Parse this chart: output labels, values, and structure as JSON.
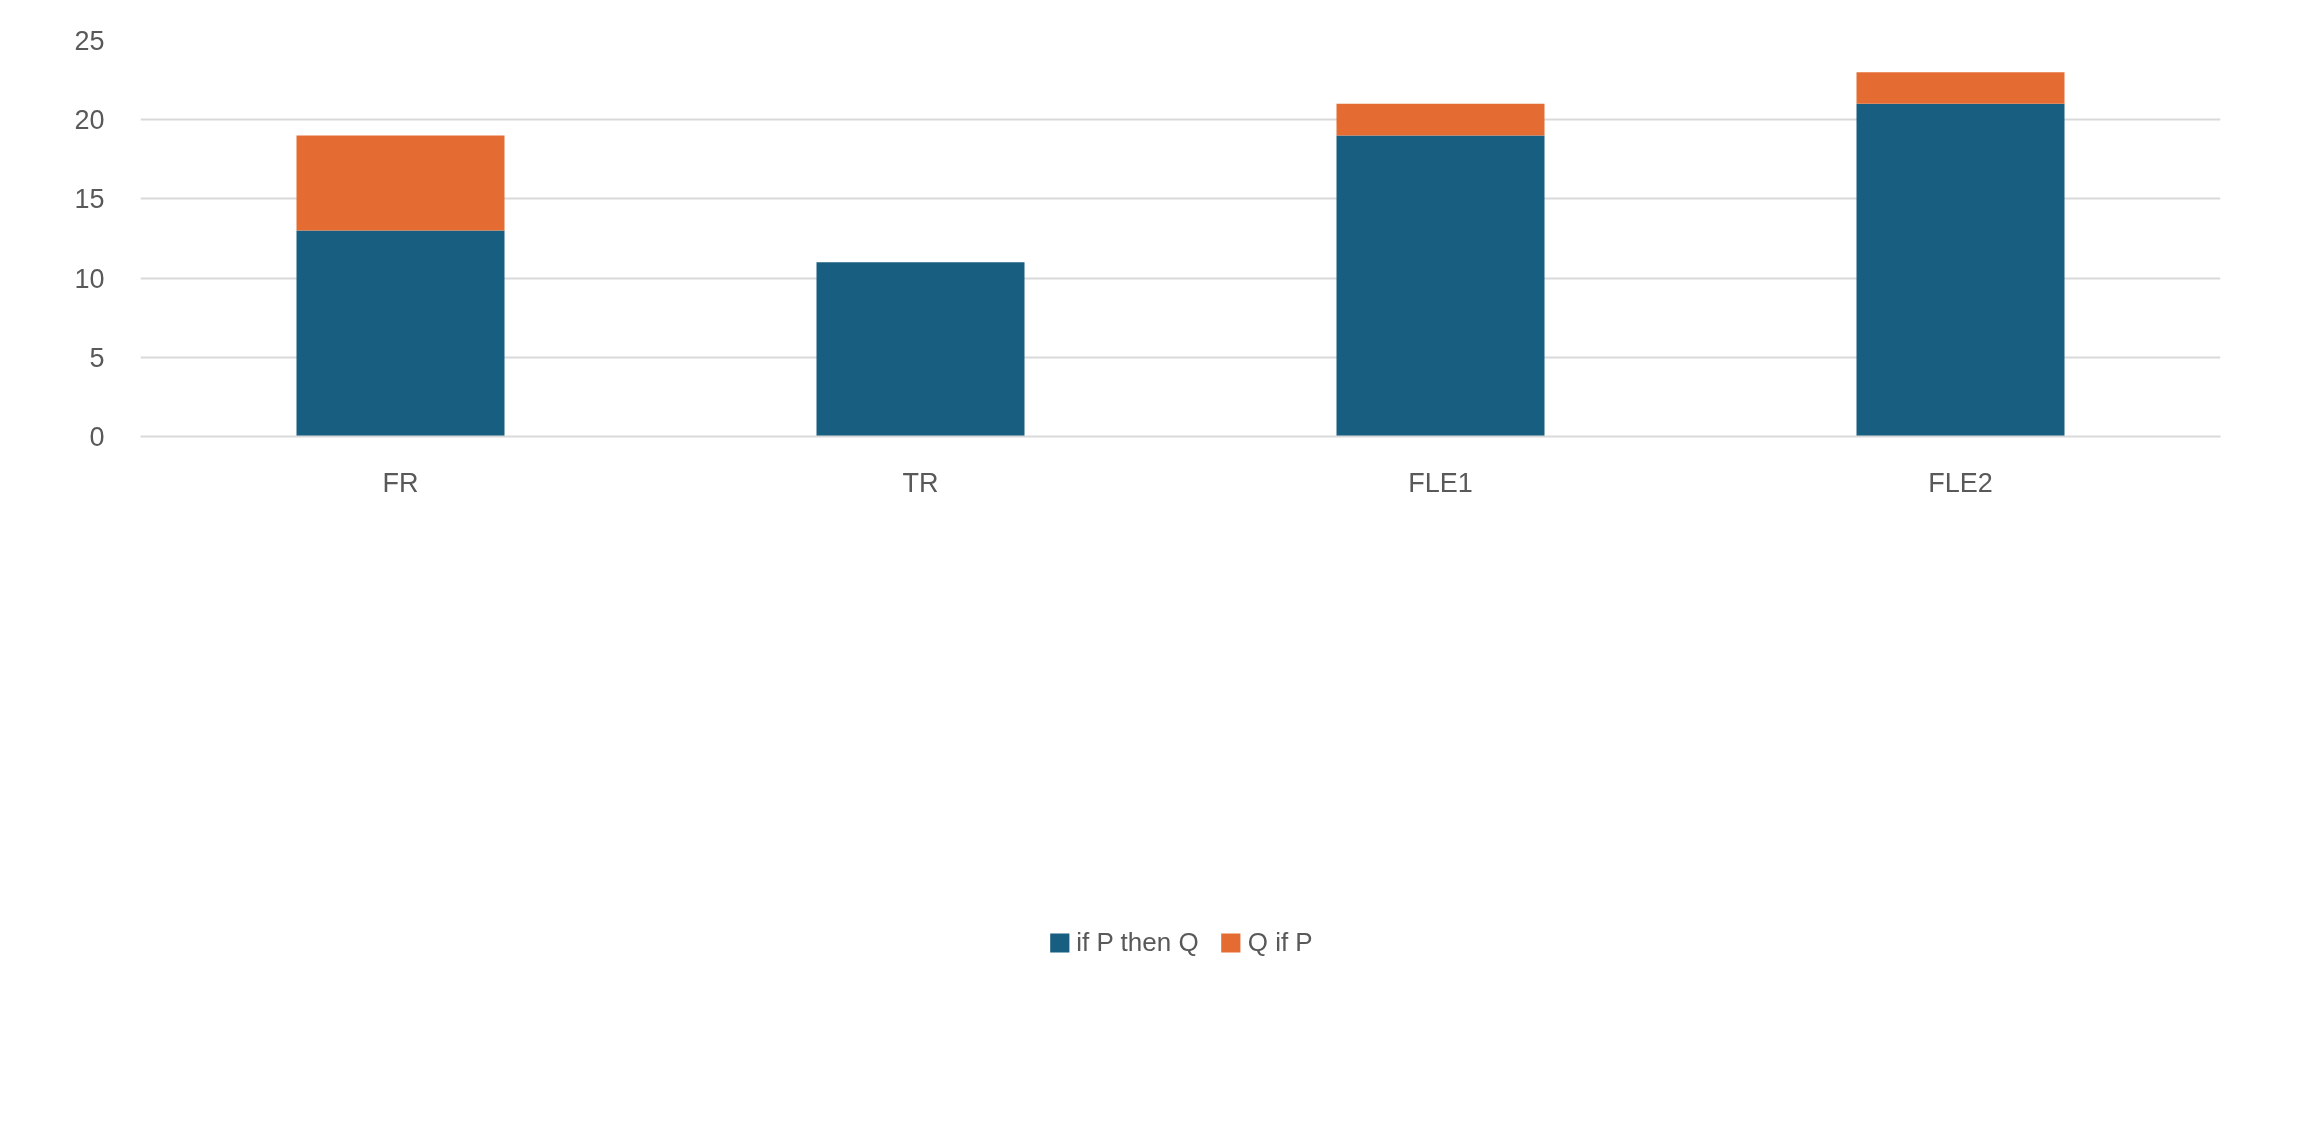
{
  "chart_data": {
    "type": "bar",
    "stacked": true,
    "categories": [
      "FR",
      "TR",
      "FLE1",
      "FLE2"
    ],
    "series": [
      {
        "name": "if P then Q",
        "color": "#175e80",
        "values": [
          13,
          11,
          19,
          21
        ]
      },
      {
        "name": "Q if P",
        "color": "#e46c32",
        "values": [
          6,
          0,
          2,
          2
        ]
      }
    ],
    "ylim": [
      0,
      25
    ],
    "yticks": [
      0,
      5,
      10,
      15,
      20,
      25
    ],
    "grid": "y",
    "legend": "bottom"
  }
}
